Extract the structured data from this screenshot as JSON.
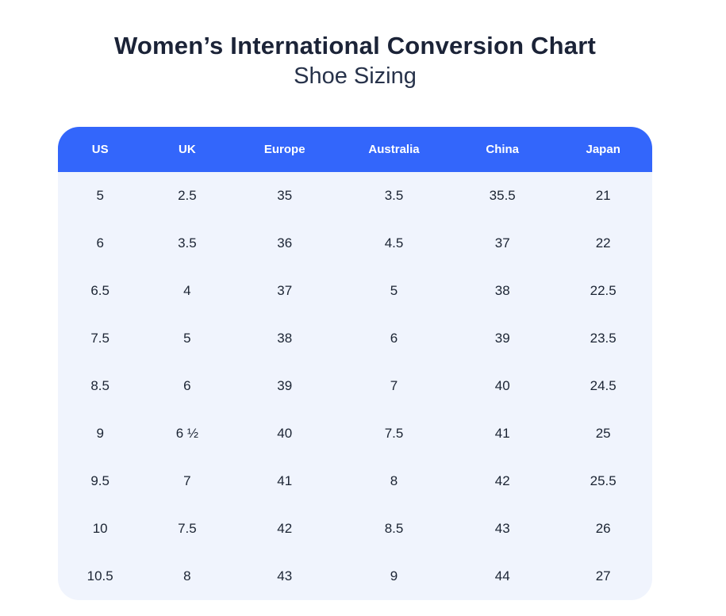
{
  "page": {
    "title": "Women’s International Conversion Chart",
    "subtitle": "Shoe Sizing"
  },
  "colors": {
    "header_bg": "#3366fb",
    "body_bg": "#f0f4fd",
    "title_text": "#1b2337",
    "subtitle_text": "#27324a",
    "cell_text": "#1b2433",
    "header_text": "#ffffff"
  },
  "chart_data": {
    "type": "table",
    "title": "Women’s International Conversion Chart",
    "subtitle": "Shoe Sizing",
    "columns": [
      "US",
      "UK",
      "Europe",
      "Australia",
      "China",
      "Japan"
    ],
    "column_width_pct": [
      14.2,
      15.1,
      17.7,
      19.1,
      17.4,
      16.5
    ],
    "rows": [
      [
        "5",
        "2.5",
        "35",
        "3.5",
        "35.5",
        "21"
      ],
      [
        "6",
        "3.5",
        "36",
        "4.5",
        "37",
        "22"
      ],
      [
        "6.5",
        "4",
        "37",
        "5",
        "38",
        "22.5"
      ],
      [
        "7.5",
        "5",
        "38",
        "6",
        "39",
        "23.5"
      ],
      [
        "8.5",
        "6",
        "39",
        "7",
        "40",
        "24.5"
      ],
      [
        "9",
        "6 ½",
        "40",
        "7.5",
        "41",
        "25"
      ],
      [
        "9.5",
        "7",
        "41",
        "8",
        "42",
        "25.5"
      ],
      [
        "10",
        "7.5",
        "42",
        "8.5",
        "43",
        "26"
      ],
      [
        "10.5",
        "8",
        "43",
        "9",
        "44",
        "27"
      ]
    ]
  }
}
